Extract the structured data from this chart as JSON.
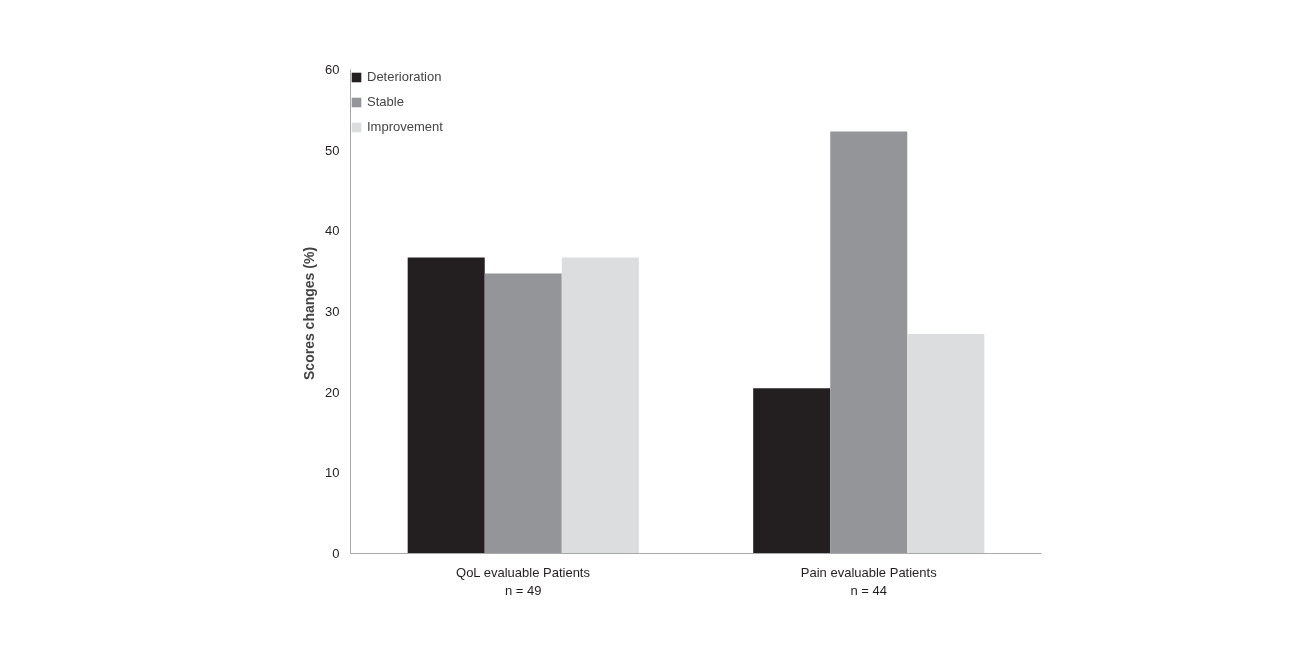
{
  "chart_data": {
    "type": "bar",
    "ylabel": "Scores changes  (%)",
    "categories": [
      "QoL evaluable Patients\nn = 49",
      "Pain evaluable Patients\nn = 44"
    ],
    "series": [
      {
        "name": "Deterioration",
        "color": "#231f20",
        "values": [
          36.7,
          20.5
        ]
      },
      {
        "name": "Stable",
        "color": "#939598",
        "values": [
          34.7,
          52.3
        ]
      },
      {
        "name": "Improvement",
        "color": "#dcdddf",
        "values": [
          36.7,
          27.2
        ]
      }
    ],
    "ylim": [
      0,
      60
    ],
    "yticks": [
      0,
      10,
      20,
      30,
      40,
      50,
      60
    ],
    "grid": false,
    "legend": "top left"
  }
}
